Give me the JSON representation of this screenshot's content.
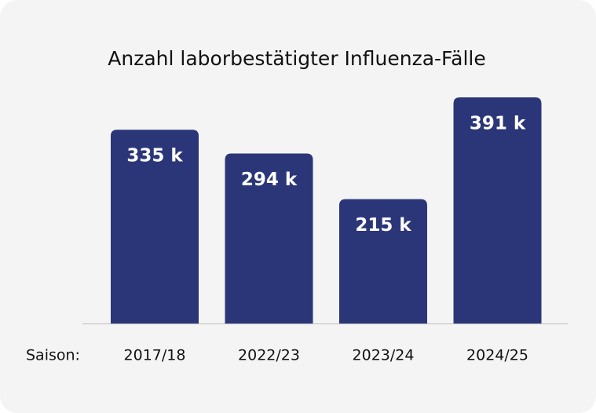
{
  "chart_data": {
    "type": "bar",
    "title": "Anzahl laborbestätigter Influenza-Fälle",
    "x_label": "Saison:",
    "categories": [
      "2017/18",
      "2022/23",
      "2023/24",
      "2024/25"
    ],
    "values": [
      335,
      294,
      215,
      391
    ],
    "value_labels": [
      "335 k",
      "294 k",
      "215 k",
      "391 k"
    ],
    "color": "#2b3679"
  }
}
